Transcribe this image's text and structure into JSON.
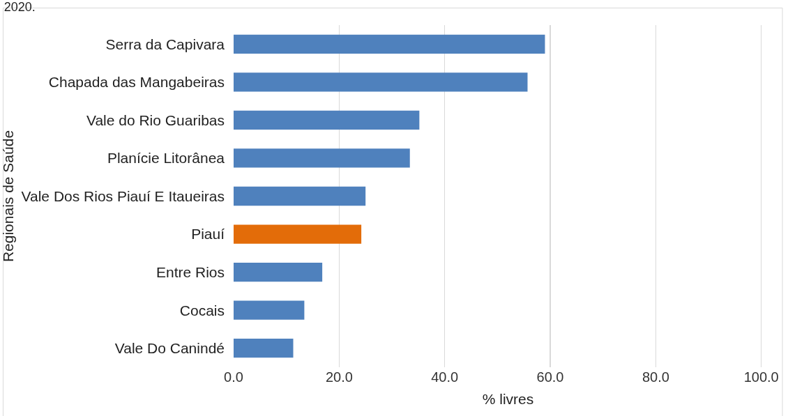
{
  "chart_data": {
    "type": "bar",
    "orientation": "horizontal",
    "title": "2020.",
    "xlabel": "% livres",
    "ylabel": "Regionais de Saúde",
    "categories": [
      "Serra da Capivara",
      "Chapada das Mangabeiras",
      "Vale do Rio Guaribas",
      "Planície Litorânea",
      "Vale Dos Rios Piauí E Itaueiras",
      "Piauí",
      "Entre Rios",
      "Cocais",
      "Vale Do Canindé"
    ],
    "values": [
      59.0,
      55.7,
      35.2,
      33.4,
      25.0,
      24.2,
      16.8,
      13.4,
      11.3
    ],
    "colors": [
      "#4f81bd",
      "#4f81bd",
      "#4f81bd",
      "#4f81bd",
      "#4f81bd",
      "#e36c09",
      "#4f81bd",
      "#4f81bd",
      "#4f81bd"
    ],
    "xlim": [
      0,
      104
    ],
    "xticks": [
      {
        "value": 0,
        "label": "0.0"
      },
      {
        "value": 20,
        "label": "20.0"
      },
      {
        "value": 40,
        "label": "40.0"
      },
      {
        "value": 60,
        "label": "60.0"
      },
      {
        "value": 80,
        "label": "80.0"
      },
      {
        "value": 100,
        "label": "100.0"
      }
    ],
    "grid": "x"
  }
}
